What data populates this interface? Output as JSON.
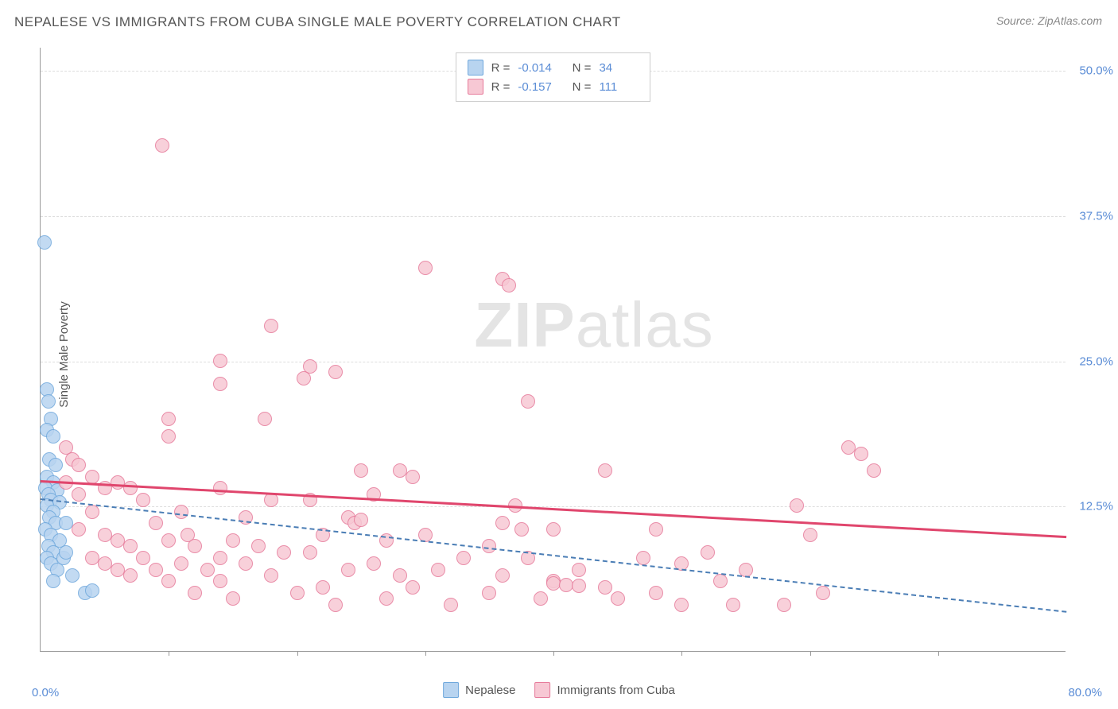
{
  "chart": {
    "type": "scatter",
    "title": "NEPALESE VS IMMIGRANTS FROM CUBA SINGLE MALE POVERTY CORRELATION CHART",
    "source_label": "Source: ZipAtlas.com",
    "y_axis_label": "Single Male Poverty",
    "watermark_prefix": "ZIP",
    "watermark_suffix": "atlas",
    "background_color": "#ffffff",
    "grid_color": "#dddddd",
    "axis_color": "#999999",
    "tick_label_color": "#5b8dd6",
    "y_ticks": [
      12.5,
      25.0,
      37.5,
      50.0
    ],
    "y_tick_labels": [
      "12.5%",
      "25.0%",
      "37.5%",
      "50.0%"
    ],
    "x_ticks": [
      10,
      20,
      30,
      40,
      50,
      60,
      70
    ],
    "x_origin_label": "0.0%",
    "x_max_label": "80.0%",
    "xlim": [
      0,
      80
    ],
    "ylim": [
      0,
      52
    ],
    "point_radius": 9,
    "point_stroke_width": 1.5,
    "series": [
      {
        "name": "Nepalese",
        "fill_color": "#b8d4f0",
        "stroke_color": "#6fa8dc",
        "line_color": "#4a7db5",
        "line_dashed": true,
        "R": "-0.014",
        "N": "34",
        "trend": {
          "x1": 0,
          "y1": 13.2,
          "x2": 80,
          "y2": 3.5
        },
        "points": [
          [
            0.3,
            35.2
          ],
          [
            0.5,
            22.5
          ],
          [
            0.6,
            21.5
          ],
          [
            0.8,
            20.0
          ],
          [
            0.5,
            19.0
          ],
          [
            1.0,
            18.5
          ],
          [
            0.7,
            16.5
          ],
          [
            1.2,
            16.0
          ],
          [
            0.5,
            15.0
          ],
          [
            1.0,
            14.5
          ],
          [
            0.4,
            14.0
          ],
          [
            1.3,
            13.8
          ],
          [
            0.6,
            13.5
          ],
          [
            0.8,
            13.0
          ],
          [
            1.5,
            12.8
          ],
          [
            0.5,
            12.5
          ],
          [
            1.0,
            12.0
          ],
          [
            0.7,
            11.5
          ],
          [
            1.2,
            11.0
          ],
          [
            0.4,
            10.5
          ],
          [
            0.8,
            10.0
          ],
          [
            1.5,
            9.5
          ],
          [
            0.6,
            9.0
          ],
          [
            1.0,
            8.5
          ],
          [
            0.5,
            8.0
          ],
          [
            1.8,
            8.0
          ],
          [
            0.8,
            7.5
          ],
          [
            1.3,
            7.0
          ],
          [
            2.0,
            8.5
          ],
          [
            2.5,
            6.5
          ],
          [
            1.0,
            6.0
          ],
          [
            3.5,
            5.0
          ],
          [
            4.0,
            5.2
          ],
          [
            2.0,
            11.0
          ]
        ]
      },
      {
        "name": "Immigrants from Cuba",
        "fill_color": "#f7c8d4",
        "stroke_color": "#e67a9a",
        "line_color": "#e0466d",
        "line_dashed": false,
        "R": "-0.157",
        "N": "111",
        "trend": {
          "x1": 0,
          "y1": 14.8,
          "x2": 80,
          "y2": 10.0
        },
        "points": [
          [
            9.5,
            43.5
          ],
          [
            30,
            33.0
          ],
          [
            36,
            32.0
          ],
          [
            36.5,
            31.5
          ],
          [
            18,
            28.0
          ],
          [
            14,
            25.0
          ],
          [
            21,
            24.5
          ],
          [
            23,
            24.0
          ],
          [
            14,
            23.0
          ],
          [
            20.5,
            23.5
          ],
          [
            38,
            21.5
          ],
          [
            10,
            20.0
          ],
          [
            17.5,
            20.0
          ],
          [
            10,
            18.5
          ],
          [
            2,
            17.5
          ],
          [
            63,
            17.5
          ],
          [
            2.5,
            16.5
          ],
          [
            64,
            17.0
          ],
          [
            65,
            15.5
          ],
          [
            3,
            16.0
          ],
          [
            44,
            15.5
          ],
          [
            25,
            15.5
          ],
          [
            28,
            15.5
          ],
          [
            29,
            15.0
          ],
          [
            4,
            15.0
          ],
          [
            2,
            14.5
          ],
          [
            6,
            14.5
          ],
          [
            5,
            14.0
          ],
          [
            7,
            14.0
          ],
          [
            14,
            14.0
          ],
          [
            26,
            13.5
          ],
          [
            3,
            13.5
          ],
          [
            8,
            13.0
          ],
          [
            18,
            13.0
          ],
          [
            21,
            13.0
          ],
          [
            37,
            12.5
          ],
          [
            59,
            12.5
          ],
          [
            4,
            12.0
          ],
          [
            11,
            12.0
          ],
          [
            16,
            11.5
          ],
          [
            24,
            11.5
          ],
          [
            24.5,
            11.0
          ],
          [
            25,
            11.3
          ],
          [
            9,
            11.0
          ],
          [
            36,
            11.0
          ],
          [
            3,
            10.5
          ],
          [
            37.5,
            10.5
          ],
          [
            40,
            10.5
          ],
          [
            48,
            10.5
          ],
          [
            5,
            10.0
          ],
          [
            11.5,
            10.0
          ],
          [
            22,
            10.0
          ],
          [
            30,
            10.0
          ],
          [
            60,
            10.0
          ],
          [
            6,
            9.5
          ],
          [
            10,
            9.5
          ],
          [
            15,
            9.5
          ],
          [
            27,
            9.5
          ],
          [
            35,
            9.0
          ],
          [
            7,
            9.0
          ],
          [
            12,
            9.0
          ],
          [
            17,
            9.0
          ],
          [
            19,
            8.5
          ],
          [
            21,
            8.5
          ],
          [
            52,
            8.5
          ],
          [
            4,
            8.0
          ],
          [
            8,
            8.0
          ],
          [
            14,
            8.0
          ],
          [
            33,
            8.0
          ],
          [
            38,
            8.0
          ],
          [
            47,
            8.0
          ],
          [
            5,
            7.5
          ],
          [
            11,
            7.5
          ],
          [
            16,
            7.5
          ],
          [
            26,
            7.5
          ],
          [
            50,
            7.5
          ],
          [
            6,
            7.0
          ],
          [
            9,
            7.0
          ],
          [
            13,
            7.0
          ],
          [
            24,
            7.0
          ],
          [
            31,
            7.0
          ],
          [
            42,
            7.0
          ],
          [
            55,
            7.0
          ],
          [
            7,
            6.5
          ],
          [
            18,
            6.5
          ],
          [
            28,
            6.5
          ],
          [
            36,
            6.5
          ],
          [
            40,
            6.0
          ],
          [
            53,
            6.0
          ],
          [
            10,
            6.0
          ],
          [
            14,
            6.0
          ],
          [
            22,
            5.5
          ],
          [
            29,
            5.5
          ],
          [
            44,
            5.5
          ],
          [
            12,
            5.0
          ],
          [
            20,
            5.0
          ],
          [
            35,
            5.0
          ],
          [
            48,
            5.0
          ],
          [
            61,
            5.0
          ],
          [
            15,
            4.5
          ],
          [
            27,
            4.5
          ],
          [
            39,
            4.5
          ],
          [
            45,
            4.5
          ],
          [
            23,
            4.0
          ],
          [
            32,
            4.0
          ],
          [
            50,
            4.0
          ],
          [
            54,
            4.0
          ],
          [
            58,
            4.0
          ],
          [
            40,
            5.8
          ],
          [
            41,
            5.7
          ],
          [
            42,
            5.6
          ]
        ]
      }
    ],
    "legend_bottom_items": [
      {
        "label": "Nepalese",
        "fill": "#b8d4f0",
        "stroke": "#6fa8dc"
      },
      {
        "label": "Immigrants from Cuba",
        "fill": "#f7c8d4",
        "stroke": "#e67a9a"
      }
    ]
  }
}
